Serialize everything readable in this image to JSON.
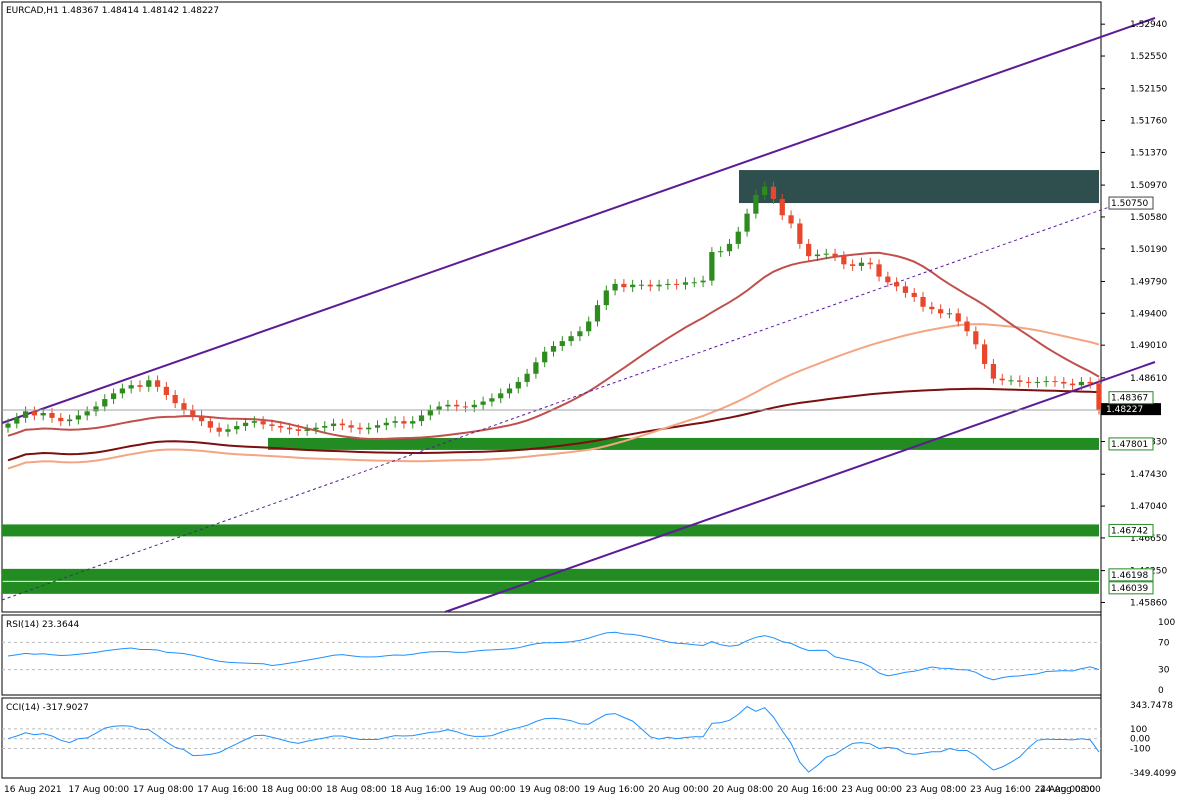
{
  "header": {
    "symbol_line": "EURCAD,H1  1.48367 1.48414 1.48142 1.48227",
    "rsi_label": "RSI(14) 23.3644",
    "cci_label": "CCI(14) -317.9027"
  },
  "colors": {
    "bull": "#2e8b1e",
    "bear": "#e8472b",
    "channel": "#5b1c95",
    "ma_fast": "#c0504d",
    "ma_mid": "#f4a582",
    "ma_slow": "#7b1010",
    "zone_green": "#228b22",
    "zone_dark": "#2f4f4f",
    "indicator": "#1e90ff"
  },
  "chart_data": {
    "type": "candlestick",
    "symbol": "EURCAD",
    "timeframe": "H1",
    "ohlc_last": {
      "open": 1.48367,
      "high": 1.48414,
      "low": 1.48142,
      "close": 1.48227
    },
    "ylim": [
      1.4578,
      1.5304
    ],
    "y_ticks": [
      "1.52940",
      "1.52550",
      "1.52150",
      "1.51760",
      "1.51370",
      "1.50970",
      "1.50580",
      "1.50190",
      "1.49790",
      "1.49400",
      "1.49010",
      "1.48610",
      "1.48227",
      "1.47830",
      "1.47430",
      "1.47040",
      "1.46650",
      "1.46250",
      "1.45860"
    ],
    "x_ticks": [
      "16 Aug 2021",
      "17 Aug 00:00",
      "17 Aug 08:00",
      "17 Aug 16:00",
      "18 Aug 00:00",
      "18 Aug 08:00",
      "18 Aug 16:00",
      "19 Aug 00:00",
      "19 Aug 08:00",
      "19 Aug 16:00",
      "20 Aug 00:00",
      "20 Aug 08:00",
      "20 Aug 16:00",
      "23 Aug 00:00",
      "23 Aug 08:00",
      "23 Aug 16:00",
      "24 Aug 00:00",
      "24 Aug 08:00"
    ],
    "closes": [
      1.4805,
      1.4812,
      1.482,
      1.4815,
      1.4818,
      1.4812,
      1.4808,
      1.481,
      1.4815,
      1.482,
      1.4826,
      1.4835,
      1.4842,
      1.4848,
      1.4852,
      1.485,
      1.4858,
      1.485,
      1.484,
      1.483,
      1.4822,
      1.4815,
      1.4808,
      1.48,
      1.4795,
      1.4798,
      1.4802,
      1.4806,
      1.4808,
      1.4804,
      1.4802,
      1.48,
      1.4798,
      1.4796,
      1.4798,
      1.48,
      1.4802,
      1.4805,
      1.4803,
      1.48,
      1.4798,
      1.48,
      1.4803,
      1.4806,
      1.4808,
      1.4805,
      1.4808,
      1.4815,
      1.4822,
      1.4826,
      1.4828,
      1.4826,
      1.4825,
      1.4828,
      1.4832,
      1.4836,
      1.4842,
      1.4848,
      1.4856,
      1.4866,
      1.488,
      1.4893,
      1.49,
      1.4906,
      1.4912,
      1.4918,
      1.493,
      1.495,
      1.4968,
      1.4976,
      1.4972,
      1.4975,
      1.4975,
      1.4973,
      1.4975,
      1.4976,
      1.4975,
      1.4978,
      1.4978,
      1.498,
      1.5015,
      1.5016,
      1.5025,
      1.504,
      1.5062,
      1.5085,
      1.5095,
      1.508,
      1.506,
      1.505,
      1.5025,
      1.501,
      1.5012,
      1.5013,
      1.501,
      1.5,
      1.4998,
      1.5002,
      1.5,
      1.4985,
      1.4978,
      1.4973,
      1.4965,
      1.496,
      1.4948,
      1.4945,
      1.494,
      1.494,
      1.493,
      1.4918,
      1.4902,
      1.4878,
      1.486,
      1.4858,
      1.4858,
      1.4856,
      1.4855,
      1.4856,
      1.4857,
      1.4856,
      1.4854,
      1.4852,
      1.4856,
      1.4854,
      1.4822
    ],
    "rsi": {
      "value": 23.3644,
      "levels": [
        70,
        30
      ],
      "scale_labels": [
        "100",
        "70",
        "30",
        "0"
      ]
    },
    "cci": {
      "value": -317.9027,
      "levels": [
        100,
        0,
        -100
      ],
      "scale_labels": [
        "343.7478",
        "100",
        "0.00",
        "-100",
        "-349.4099"
      ]
    },
    "horizontal_zones": [
      {
        "label": "1.50750",
        "price": 1.5075,
        "color": "dark"
      },
      {
        "label": "1.48367",
        "price": 1.48367,
        "color": "line"
      },
      {
        "label": "1.47801",
        "price": 1.47801,
        "color": "green"
      },
      {
        "label": "1.46742",
        "price": 1.46742,
        "color": "green"
      },
      {
        "label": "1.46198",
        "price": 1.46198,
        "color": "green"
      },
      {
        "label": "1.46039",
        "price": 1.46039,
        "color": "green"
      }
    ],
    "current_price_label": "1.48227"
  }
}
